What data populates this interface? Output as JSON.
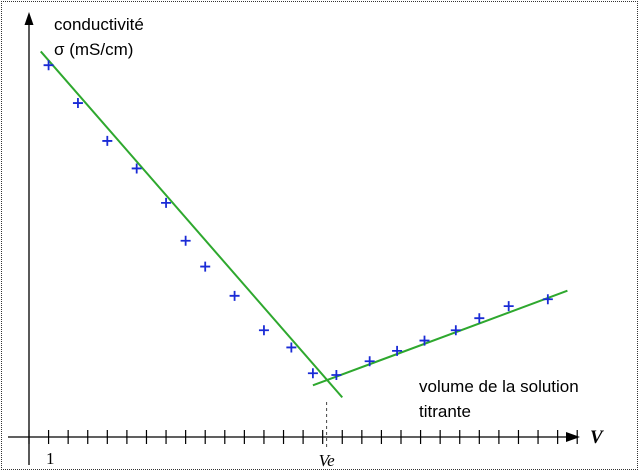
{
  "chart_data": {
    "type": "scatter",
    "y_label_line1": "conductivité",
    "y_label_line2": "σ (mS/cm)",
    "x_axis_name": "V",
    "x_label_line1": "volume de la solution",
    "x_label_line2": "titrante",
    "tick_first_label": "1",
    "equivalence_label": "Ve",
    "x_ticks": [
      0,
      1,
      2,
      3,
      4,
      5,
      6,
      7,
      8,
      9,
      10,
      11,
      12,
      13,
      14,
      15,
      16,
      17,
      18,
      19,
      20,
      21,
      22,
      23,
      24,
      25,
      26,
      27,
      28
    ],
    "xlim": [
      0,
      28.5
    ],
    "ylim": [
      0,
      10.4
    ],
    "points": [
      {
        "x": 1.0,
        "y": 9.0
      },
      {
        "x": 2.5,
        "y": 7.9
      },
      {
        "x": 4.0,
        "y": 6.8
      },
      {
        "x": 5.5,
        "y": 6.0
      },
      {
        "x": 7.0,
        "y": 5.0
      },
      {
        "x": 8.0,
        "y": 3.9
      },
      {
        "x": 9.0,
        "y": 3.15
      },
      {
        "x": 10.5,
        "y": 2.3
      },
      {
        "x": 12.0,
        "y": 1.3
      },
      {
        "x": 13.4,
        "y": 0.8
      },
      {
        "x": 14.5,
        "y": 0.05
      },
      {
        "x": 15.7,
        "y": 0.0
      },
      {
        "x": 17.4,
        "y": 0.4
      },
      {
        "x": 18.8,
        "y": 0.7
      },
      {
        "x": 20.2,
        "y": 1.0
      },
      {
        "x": 21.8,
        "y": 1.3
      },
      {
        "x": 23.0,
        "y": 1.65
      },
      {
        "x": 24.5,
        "y": 2.0
      },
      {
        "x": 26.5,
        "y": 2.2
      }
    ],
    "fit_lines": [
      {
        "x": [
          0.6,
          16.0
        ],
        "y": [
          9.4,
          -0.65
        ]
      },
      {
        "x": [
          14.5,
          27.5
        ],
        "y": [
          -0.3,
          2.45
        ]
      }
    ],
    "equivalence_x": 15.2,
    "colors": {
      "points": "#1a2bd6",
      "lines": "#2ea82e",
      "axis": "#000000"
    },
    "grid": false,
    "legend": "none"
  }
}
